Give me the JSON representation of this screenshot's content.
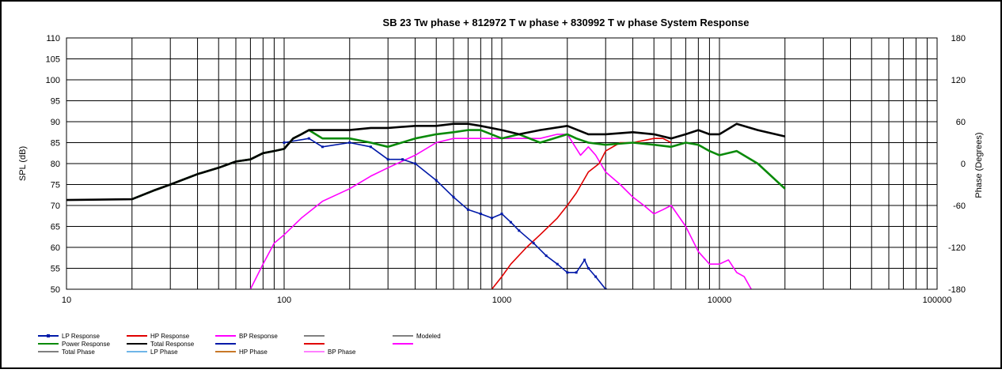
{
  "chart_data": {
    "type": "line",
    "title": "SB 23 Tw phase + 812972 T w phase + 830992 T w phase   System Response",
    "xlabel": "",
    "ylabel": "SPL (dB)",
    "y2label": "Phase (Degrees)",
    "x_scale": "log",
    "xlim": [
      10,
      100000
    ],
    "ylim": [
      50,
      110
    ],
    "y2lim": [
      -180,
      180
    ],
    "grid": true,
    "legend_position": "bottom",
    "x_ticks": [
      "10",
      "100",
      "1000",
      "10000",
      "100000"
    ],
    "y_ticks": [
      "50",
      "55",
      "60",
      "65",
      "70",
      "75",
      "80",
      "85",
      "90",
      "95",
      "100",
      "105",
      "110"
    ],
    "y2_ticks": [
      "-180",
      "-120",
      "-60",
      "0",
      "60",
      "120",
      "180"
    ],
    "series": [
      {
        "name": "LP Response",
        "color": "#0019a8",
        "style": "marker",
        "x": [
          100,
          130,
          150,
          200,
          250,
          300,
          350,
          400,
          500,
          600,
          700,
          800,
          900,
          1000,
          1100,
          1200,
          1400,
          1600,
          1800,
          2000,
          2200,
          2400,
          2500,
          2700,
          3000
        ],
        "y": [
          85,
          86,
          84,
          85,
          84,
          81,
          81,
          80,
          76,
          72,
          69,
          68,
          67,
          68,
          66,
          64,
          61,
          58,
          56,
          54,
          54,
          57,
          55,
          53,
          50
        ]
      },
      {
        "name": "HP Response",
        "color": "#e00000",
        "x": [
          900,
          1000,
          1100,
          1300,
          1500,
          1800,
          2000,
          2200,
          2500,
          2800,
          3000,
          3500,
          4000,
          5000,
          5500,
          6000
        ],
        "y": [
          50,
          53,
          56,
          60,
          63,
          67,
          70,
          73,
          78,
          80,
          83,
          85,
          85,
          86,
          86,
          85
        ]
      },
      {
        "name": "BP Response",
        "color": "#ff00ff",
        "x": [
          70,
          80,
          90,
          100,
          120,
          150,
          200,
          250,
          300,
          400,
          500,
          600,
          700,
          800,
          1000,
          1200,
          1500,
          1800,
          2000,
          2300,
          2500,
          2700,
          3000,
          3500,
          4000,
          4500,
          5000,
          5500,
          6000,
          7000,
          8000,
          9000,
          10000,
          11000,
          12000,
          13000,
          14000
        ],
        "y": [
          50,
          56,
          61,
          63,
          67,
          71,
          74,
          77,
          79,
          82,
          85,
          86,
          86,
          86,
          86,
          86,
          86,
          87,
          87,
          82,
          84,
          82,
          78,
          75,
          72,
          70,
          68,
          69,
          70,
          65,
          59,
          56,
          56,
          57,
          54,
          53,
          50
        ]
      },
      {
        "name": "Power Response",
        "color": "#0a8a0a",
        "x": [
          20,
          25,
          30,
          40,
          50,
          60,
          70,
          80,
          90,
          100,
          110,
          120,
          130,
          150,
          200,
          250,
          300,
          400,
          500,
          600,
          700,
          800,
          1000,
          1200,
          1500,
          2000,
          2200,
          2500,
          3000,
          4000,
          5000,
          6000,
          7000,
          8000,
          9000,
          10000,
          12000,
          15000,
          20000
        ],
        "y": [
          71.5,
          73.5,
          75,
          77.5,
          79,
          80.5,
          81,
          82.5,
          83,
          83.5,
          86,
          87,
          88,
          86,
          86,
          85,
          84,
          86,
          87,
          87.5,
          88,
          88,
          86,
          87,
          85,
          87,
          86,
          85,
          84.5,
          85,
          84.5,
          84,
          85,
          84.5,
          83,
          82,
          83,
          80,
          74
        ]
      },
      {
        "name": "Total Response",
        "color": "#000000",
        "x": [
          10,
          20,
          25,
          30,
          40,
          50,
          60,
          70,
          80,
          90,
          100,
          110,
          120,
          130,
          150,
          200,
          250,
          300,
          400,
          500,
          600,
          700,
          800,
          1000,
          1200,
          1500,
          2000,
          2500,
          3000,
          4000,
          5000,
          6000,
          7000,
          8000,
          9000,
          10000,
          12000,
          15000,
          20000
        ],
        "y": [
          71.3,
          71.5,
          73.5,
          75,
          77.5,
          79,
          80.5,
          81,
          82.5,
          83,
          83.5,
          86,
          87,
          88,
          88,
          88,
          88.5,
          88.5,
          89,
          89,
          89.5,
          89.5,
          89,
          88,
          87,
          88,
          89,
          87,
          87,
          87.5,
          87,
          86,
          87,
          88,
          87,
          87,
          89.5,
          88,
          86.5
        ]
      },
      {
        "name": "Modeled",
        "color": "#808080"
      },
      {
        "name": "Total Phase",
        "color": "#808080"
      },
      {
        "name": "LP Phase",
        "color": "#6fb6e8"
      },
      {
        "name": "HP Phase",
        "color": "#c87828"
      },
      {
        "name": "BP Phase",
        "color": "#ff80ff"
      }
    ],
    "legend_rows": [
      [
        {
          "name": "LP Response",
          "color": "#0019a8",
          "marker": true
        },
        {
          "name": "HP Response",
          "color": "#e00000"
        },
        {
          "name": "BP Response",
          "color": "#ff00ff"
        },
        {
          "name": "",
          "color": "#808080"
        },
        {
          "name": "Modeled",
          "color": "#808080"
        }
      ],
      [
        {
          "name": "Power Response",
          "color": "#0a8a0a"
        },
        {
          "name": "Total Response",
          "color": "#000000"
        },
        {
          "name": "",
          "color": "#0019a8"
        },
        {
          "name": "",
          "color": "#e00000"
        },
        {
          "name": "",
          "color": "#ff00ff"
        }
      ],
      [
        {
          "name": "Total Phase",
          "color": "#808080"
        },
        {
          "name": "LP Phase",
          "color": "#6fb6e8"
        },
        {
          "name": "HP Phase",
          "color": "#c87828"
        },
        {
          "name": "BP Phase",
          "color": "#ff80ff"
        }
      ]
    ]
  }
}
